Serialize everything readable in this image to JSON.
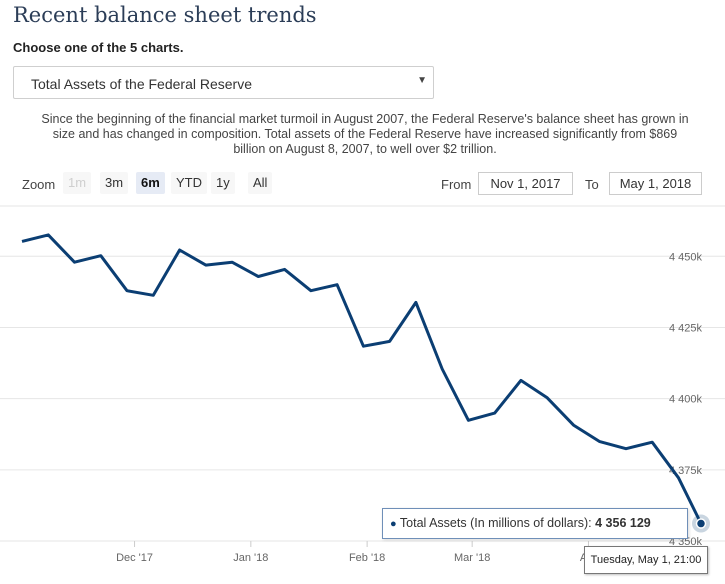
{
  "header": {
    "title": "Recent balance sheet trends",
    "choose_label": "Choose one of the 5 charts.",
    "select_value": "Total Assets of the Federal Reserve",
    "description": "Since the beginning of the financial market turmoil in August 2007, the Federal Reserve's balance sheet has grown in size and has changed in composition. Total assets of the Federal Reserve have increased significantly from $869 billion on August 8, 2007, to well over $2 trillion."
  },
  "range_selector": {
    "zoom_label": "Zoom",
    "buttons": [
      "1m",
      "3m",
      "6m",
      "YTD",
      "1y",
      "All"
    ],
    "disabled_button": "1m",
    "active_button": "6m",
    "from_label": "From",
    "from_value": "Nov 1, 2017",
    "to_label": "To",
    "to_value": "May 1, 2018"
  },
  "tooltip": {
    "series_label": "Total Assets (In millions of dollars): ",
    "value_text": "4 356 129",
    "date_text": "Tuesday, May 1, 21:00"
  },
  "colors": {
    "line": "#0b3e73",
    "grid": "#e6e6e6",
    "title": "#2b3d57"
  },
  "chart_data": {
    "type": "line",
    "title": "",
    "xlabel": "",
    "ylabel": "",
    "x_tick_labels": [
      "Dec '17",
      "Jan '18",
      "Feb '18",
      "Mar '18",
      "Apr"
    ],
    "y_tick_labels": [
      "4 350k",
      "4 375k",
      "4 400k",
      "4 425k",
      "4 450k"
    ],
    "ylim": [
      4350000,
      4468000
    ],
    "grid": true,
    "series": [
      {
        "name": "Total Assets (In millions of dollars)",
        "x": [
          "2017-11-01",
          "2017-11-08",
          "2017-11-15",
          "2017-11-22",
          "2017-11-29",
          "2017-12-06",
          "2017-12-13",
          "2017-12-20",
          "2017-12-27",
          "2018-01-03",
          "2018-01-10",
          "2018-01-17",
          "2018-01-24",
          "2018-01-31",
          "2018-02-07",
          "2018-02-14",
          "2018-02-21",
          "2018-02-28",
          "2018-03-07",
          "2018-03-14",
          "2018-03-21",
          "2018-03-28",
          "2018-04-04",
          "2018-04-11",
          "2018-04-18",
          "2018-04-25",
          "2018-05-01"
        ],
        "values": [
          4455200,
          4457500,
          4447900,
          4450200,
          4437900,
          4436300,
          4452200,
          4446900,
          4447900,
          4442900,
          4445400,
          4437900,
          4440000,
          4418400,
          4420100,
          4433800,
          4410400,
          4392400,
          4394900,
          4406400,
          4400300,
          4390700,
          4384900,
          4382400,
          4384700,
          4372200,
          4356129
        ]
      }
    ]
  }
}
